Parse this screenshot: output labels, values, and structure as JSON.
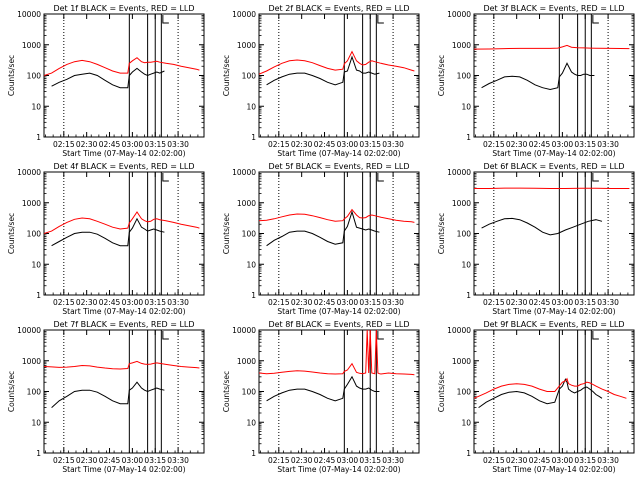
{
  "figure": {
    "time_axis_start": "02:02:00",
    "xlim_minutes": [
      0,
      105
    ],
    "ylim": [
      1,
      10000
    ],
    "y_scale": "log",
    "xticks": [
      {
        "t": 13,
        "label": "02:15"
      },
      {
        "t": 28,
        "label": "02:30"
      },
      {
        "t": 43,
        "label": "02:45"
      },
      {
        "t": 58,
        "label": "03:00"
      },
      {
        "t": 73,
        "label": "03:15"
      },
      {
        "t": 88,
        "label": "03:30"
      }
    ],
    "yticks": [
      {
        "v": 1,
        "label": "1"
      },
      {
        "v": 10,
        "label": "10"
      },
      {
        "v": 100,
        "label": "100"
      },
      {
        "v": 1000,
        "label": "1000"
      },
      {
        "v": 10000,
        "label": "10000"
      }
    ],
    "dotted_line_minutes": [
      13,
      88
    ],
    "vertical_line_minutes": [
      56,
      68,
      73,
      77
    ],
    "flag_minutes": 78,
    "colors": {
      "events": "#000000",
      "lld": "#ff0000",
      "axes": "#000000"
    }
  },
  "chart_data": [
    {
      "type": "line",
      "title": "Det 1f BLACK = Events, RED = LLD",
      "xlabel": "Start Time (07-May-14 02:02:00)",
      "ylabel": "Counts/sec",
      "series": [
        {
          "name": "Events",
          "color": "#000000",
          "x": [
            5,
            10,
            15,
            20,
            25,
            30,
            35,
            40,
            45,
            50,
            55,
            56,
            58,
            61,
            64,
            66,
            68,
            70,
            72,
            74,
            76,
            79
          ],
          "y": [
            45,
            60,
            75,
            100,
            110,
            120,
            100,
            70,
            50,
            40,
            40,
            100,
            130,
            170,
            130,
            110,
            100,
            110,
            120,
            130,
            120,
            140
          ]
        },
        {
          "name": "LLD",
          "color": "#ff0000",
          "x": [
            0,
            5,
            10,
            15,
            20,
            25,
            30,
            35,
            40,
            45,
            50,
            55,
            56,
            58,
            61,
            64,
            66,
            68,
            70,
            72,
            74,
            76,
            80,
            85,
            90,
            95,
            100,
            102
          ],
          "y": [
            100,
            120,
            170,
            230,
            280,
            310,
            280,
            230,
            180,
            140,
            120,
            120,
            250,
            300,
            380,
            280,
            260,
            270,
            270,
            280,
            290,
            270,
            250,
            230,
            200,
            180,
            160,
            150
          ]
        }
      ]
    },
    {
      "type": "line",
      "title": "Det 2f BLACK = Events, RED = LLD",
      "xlabel": "Start Time (07-May-14 02:02:00)",
      "ylabel": "Counts/sec",
      "series": [
        {
          "name": "Events",
          "color": "#000000",
          "x": [
            5,
            10,
            15,
            20,
            25,
            30,
            35,
            40,
            45,
            50,
            55,
            56,
            58,
            61,
            64,
            66,
            68,
            70,
            72,
            74,
            76,
            79
          ],
          "y": [
            50,
            70,
            90,
            110,
            120,
            120,
            100,
            80,
            60,
            50,
            60,
            130,
            140,
            400,
            150,
            140,
            120,
            120,
            130,
            120,
            110,
            120
          ]
        },
        {
          "name": "LLD",
          "color": "#ff0000",
          "x": [
            0,
            5,
            10,
            15,
            20,
            25,
            30,
            35,
            40,
            45,
            50,
            55,
            56,
            58,
            61,
            64,
            66,
            68,
            70,
            72,
            74,
            76,
            80,
            85,
            90,
            95,
            100,
            102
          ],
          "y": [
            110,
            140,
            190,
            250,
            300,
            320,
            300,
            260,
            210,
            170,
            150,
            160,
            240,
            300,
            600,
            300,
            250,
            220,
            230,
            270,
            300,
            280,
            250,
            220,
            200,
            180,
            150,
            140
          ]
        }
      ]
    },
    {
      "type": "line",
      "title": "Det 3f BLACK = Events, RED = LLD",
      "xlabel": "Start Time (07-May-14 02:02:00)",
      "ylabel": "Counts/sec",
      "series": [
        {
          "name": "Events",
          "color": "#000000",
          "x": [
            5,
            10,
            15,
            20,
            25,
            30,
            35,
            40,
            45,
            50,
            55,
            56,
            58,
            61,
            64,
            66,
            68,
            70,
            72,
            74,
            76,
            79
          ],
          "y": [
            40,
            55,
            70,
            90,
            95,
            90,
            70,
            50,
            40,
            35,
            40,
            90,
            120,
            250,
            130,
            110,
            100,
            100,
            110,
            110,
            100,
            100
          ]
        },
        {
          "name": "LLD",
          "color": "#ff0000",
          "x": [
            0,
            10,
            20,
            30,
            40,
            50,
            55,
            58,
            61,
            64,
            68,
            72,
            76,
            80,
            90,
            102
          ],
          "y": [
            720,
            730,
            750,
            760,
            760,
            760,
            780,
            850,
            950,
            830,
            800,
            790,
            780,
            770,
            760,
            750
          ]
        }
      ]
    },
    {
      "type": "line",
      "title": "Det 4f BLACK = Events, RED = LLD",
      "xlabel": "Start Time (07-May-14 02:02:00)",
      "ylabel": "Counts/sec",
      "series": [
        {
          "name": "Events",
          "color": "#000000",
          "x": [
            5,
            10,
            15,
            20,
            25,
            30,
            35,
            40,
            45,
            50,
            55,
            56,
            58,
            61,
            64,
            66,
            68,
            70,
            72,
            74,
            76,
            79
          ],
          "y": [
            40,
            55,
            75,
            100,
            110,
            110,
            95,
            70,
            50,
            40,
            40,
            110,
            150,
            300,
            160,
            140,
            120,
            130,
            140,
            130,
            120,
            110
          ]
        },
        {
          "name": "LLD",
          "color": "#ff0000",
          "x": [
            0,
            5,
            10,
            15,
            20,
            25,
            30,
            35,
            40,
            45,
            50,
            55,
            56,
            58,
            61,
            64,
            66,
            68,
            70,
            72,
            74,
            76,
            80,
            85,
            90,
            95,
            100,
            102
          ],
          "y": [
            100,
            120,
            170,
            230,
            290,
            320,
            300,
            250,
            200,
            160,
            140,
            150,
            220,
            300,
            500,
            300,
            260,
            240,
            250,
            290,
            300,
            280,
            260,
            230,
            200,
            180,
            160,
            150
          ]
        }
      ]
    },
    {
      "type": "line",
      "title": "Det 5f BLACK = Events, RED = LLD",
      "xlabel": "Start Time (07-May-14 02:02:00)",
      "ylabel": "Counts/sec",
      "series": [
        {
          "name": "Events",
          "color": "#000000",
          "x": [
            5,
            10,
            15,
            20,
            25,
            30,
            35,
            40,
            45,
            50,
            55,
            56,
            58,
            61,
            64,
            66,
            68,
            70,
            72,
            74,
            76,
            79
          ],
          "y": [
            40,
            60,
            80,
            110,
            120,
            120,
            100,
            75,
            55,
            45,
            50,
            120,
            170,
            500,
            160,
            150,
            140,
            130,
            140,
            130,
            120,
            110
          ]
        },
        {
          "name": "LLD",
          "color": "#ff0000",
          "x": [
            0,
            5,
            10,
            15,
            20,
            25,
            30,
            35,
            40,
            45,
            50,
            55,
            56,
            58,
            61,
            64,
            66,
            68,
            70,
            72,
            74,
            76,
            80,
            85,
            90,
            95,
            100,
            102
          ],
          "y": [
            260,
            270,
            300,
            350,
            400,
            430,
            420,
            380,
            330,
            280,
            250,
            260,
            300,
            360,
            600,
            400,
            330,
            320,
            330,
            380,
            400,
            380,
            340,
            300,
            270,
            250,
            240,
            230
          ]
        }
      ]
    },
    {
      "type": "line",
      "title": "Det 6f BLACK = Events, RED = LLD",
      "xlabel": "Start Time (07-May-14 02:02:00)",
      "ylabel": "Counts/sec",
      "series": [
        {
          "name": "Events",
          "color": "#000000",
          "x": [
            5,
            10,
            15,
            20,
            25,
            30,
            35,
            40,
            45,
            50,
            55,
            60,
            65,
            70,
            75,
            80,
            84
          ],
          "y": [
            150,
            200,
            250,
            300,
            310,
            280,
            220,
            160,
            110,
            90,
            100,
            130,
            160,
            200,
            250,
            280,
            250
          ]
        },
        {
          "name": "LLD",
          "color": "#ff0000",
          "x": [
            0,
            10,
            20,
            30,
            40,
            50,
            60,
            70,
            80,
            90,
            102
          ],
          "y": [
            2900,
            2900,
            3000,
            3000,
            2950,
            2900,
            2900,
            2950,
            2950,
            2900,
            2900
          ]
        }
      ]
    },
    {
      "type": "line",
      "title": "Det 7f BLACK = Events, RED = LLD",
      "xlabel": "Start Time (07-May-14 02:02:00)",
      "ylabel": "Counts/sec",
      "series": [
        {
          "name": "Events",
          "color": "#000000",
          "x": [
            5,
            10,
            15,
            20,
            25,
            30,
            35,
            40,
            45,
            50,
            55,
            56,
            58,
            61,
            64,
            66,
            68,
            70,
            72,
            74,
            76,
            79
          ],
          "y": [
            30,
            50,
            70,
            100,
            110,
            110,
            95,
            70,
            50,
            40,
            40,
            110,
            130,
            200,
            130,
            110,
            100,
            110,
            120,
            130,
            120,
            110
          ]
        },
        {
          "name": "LLD",
          "color": "#ff0000",
          "x": [
            0,
            5,
            10,
            15,
            20,
            25,
            30,
            35,
            40,
            45,
            50,
            55,
            56,
            58,
            61,
            64,
            66,
            68,
            70,
            72,
            74,
            76,
            80,
            85,
            90,
            95,
            100,
            102
          ],
          "y": [
            650,
            630,
            610,
            620,
            650,
            700,
            680,
            620,
            580,
            550,
            540,
            560,
            800,
            850,
            950,
            820,
            780,
            760,
            780,
            820,
            850,
            820,
            760,
            700,
            650,
            620,
            600,
            580
          ]
        }
      ]
    },
    {
      "type": "line",
      "title": "Det 8f BLACK = Events, RED = LLD",
      "xlabel": "Start Time (07-May-14 02:02:00)",
      "ylabel": "Counts/sec",
      "series": [
        {
          "name": "Events",
          "color": "#000000",
          "x": [
            5,
            10,
            15,
            20,
            25,
            30,
            35,
            40,
            45,
            50,
            55,
            56,
            58,
            61,
            64,
            66,
            68,
            70,
            72,
            74,
            76,
            79
          ],
          "y": [
            50,
            70,
            90,
            110,
            120,
            120,
            100,
            80,
            60,
            50,
            60,
            120,
            170,
            300,
            150,
            130,
            120,
            120,
            130,
            110,
            100,
            100
          ]
        },
        {
          "name": "LLD",
          "color": "#ff0000",
          "x": [
            0,
            5,
            10,
            15,
            20,
            25,
            30,
            35,
            40,
            45,
            50,
            55,
            56,
            58,
            61,
            64,
            66,
            68,
            70,
            71,
            72,
            73,
            74,
            76,
            77,
            78,
            79,
            80,
            85,
            90,
            95,
            100,
            102
          ],
          "y": [
            400,
            380,
            390,
            420,
            450,
            470,
            460,
            430,
            400,
            380,
            370,
            380,
            450,
            500,
            800,
            420,
            390,
            380,
            400,
            10000,
            400,
            10000,
            400,
            380,
            10000,
            400,
            380,
            370,
            400,
            380,
            370,
            360,
            350
          ]
        }
      ]
    },
    {
      "type": "line",
      "title": "Det 9f BLACK = Events, RED = LLD",
      "xlabel": "Start Time (07-May-14 02:02:00)",
      "ylabel": "Counts/sec",
      "series": [
        {
          "name": "Events",
          "color": "#000000",
          "x": [
            3,
            8,
            13,
            18,
            23,
            28,
            33,
            38,
            43,
            48,
            53,
            56,
            58,
            60,
            61,
            62,
            64,
            66,
            68,
            70,
            72,
            74,
            76,
            78,
            80,
            82,
            84
          ],
          "y": [
            30,
            45,
            60,
            80,
            95,
            100,
            90,
            70,
            50,
            40,
            45,
            120,
            150,
            250,
            200,
            120,
            100,
            90,
            100,
            110,
            130,
            140,
            120,
            100,
            80,
            70,
            60
          ]
        },
        {
          "name": "LLD",
          "color": "#ff0000",
          "x": [
            0,
            3,
            8,
            13,
            18,
            23,
            28,
            33,
            38,
            43,
            48,
            53,
            56,
            58,
            60,
            61,
            62,
            64,
            66,
            68,
            70,
            72,
            74,
            76,
            78,
            80,
            84,
            88,
            92,
            96,
            100
          ],
          "y": [
            60,
            70,
            90,
            120,
            150,
            170,
            180,
            170,
            150,
            120,
            100,
            100,
            150,
            200,
            220,
            260,
            180,
            160,
            150,
            150,
            170,
            180,
            200,
            190,
            170,
            150,
            120,
            100,
            80,
            70,
            60
          ]
        }
      ]
    }
  ]
}
